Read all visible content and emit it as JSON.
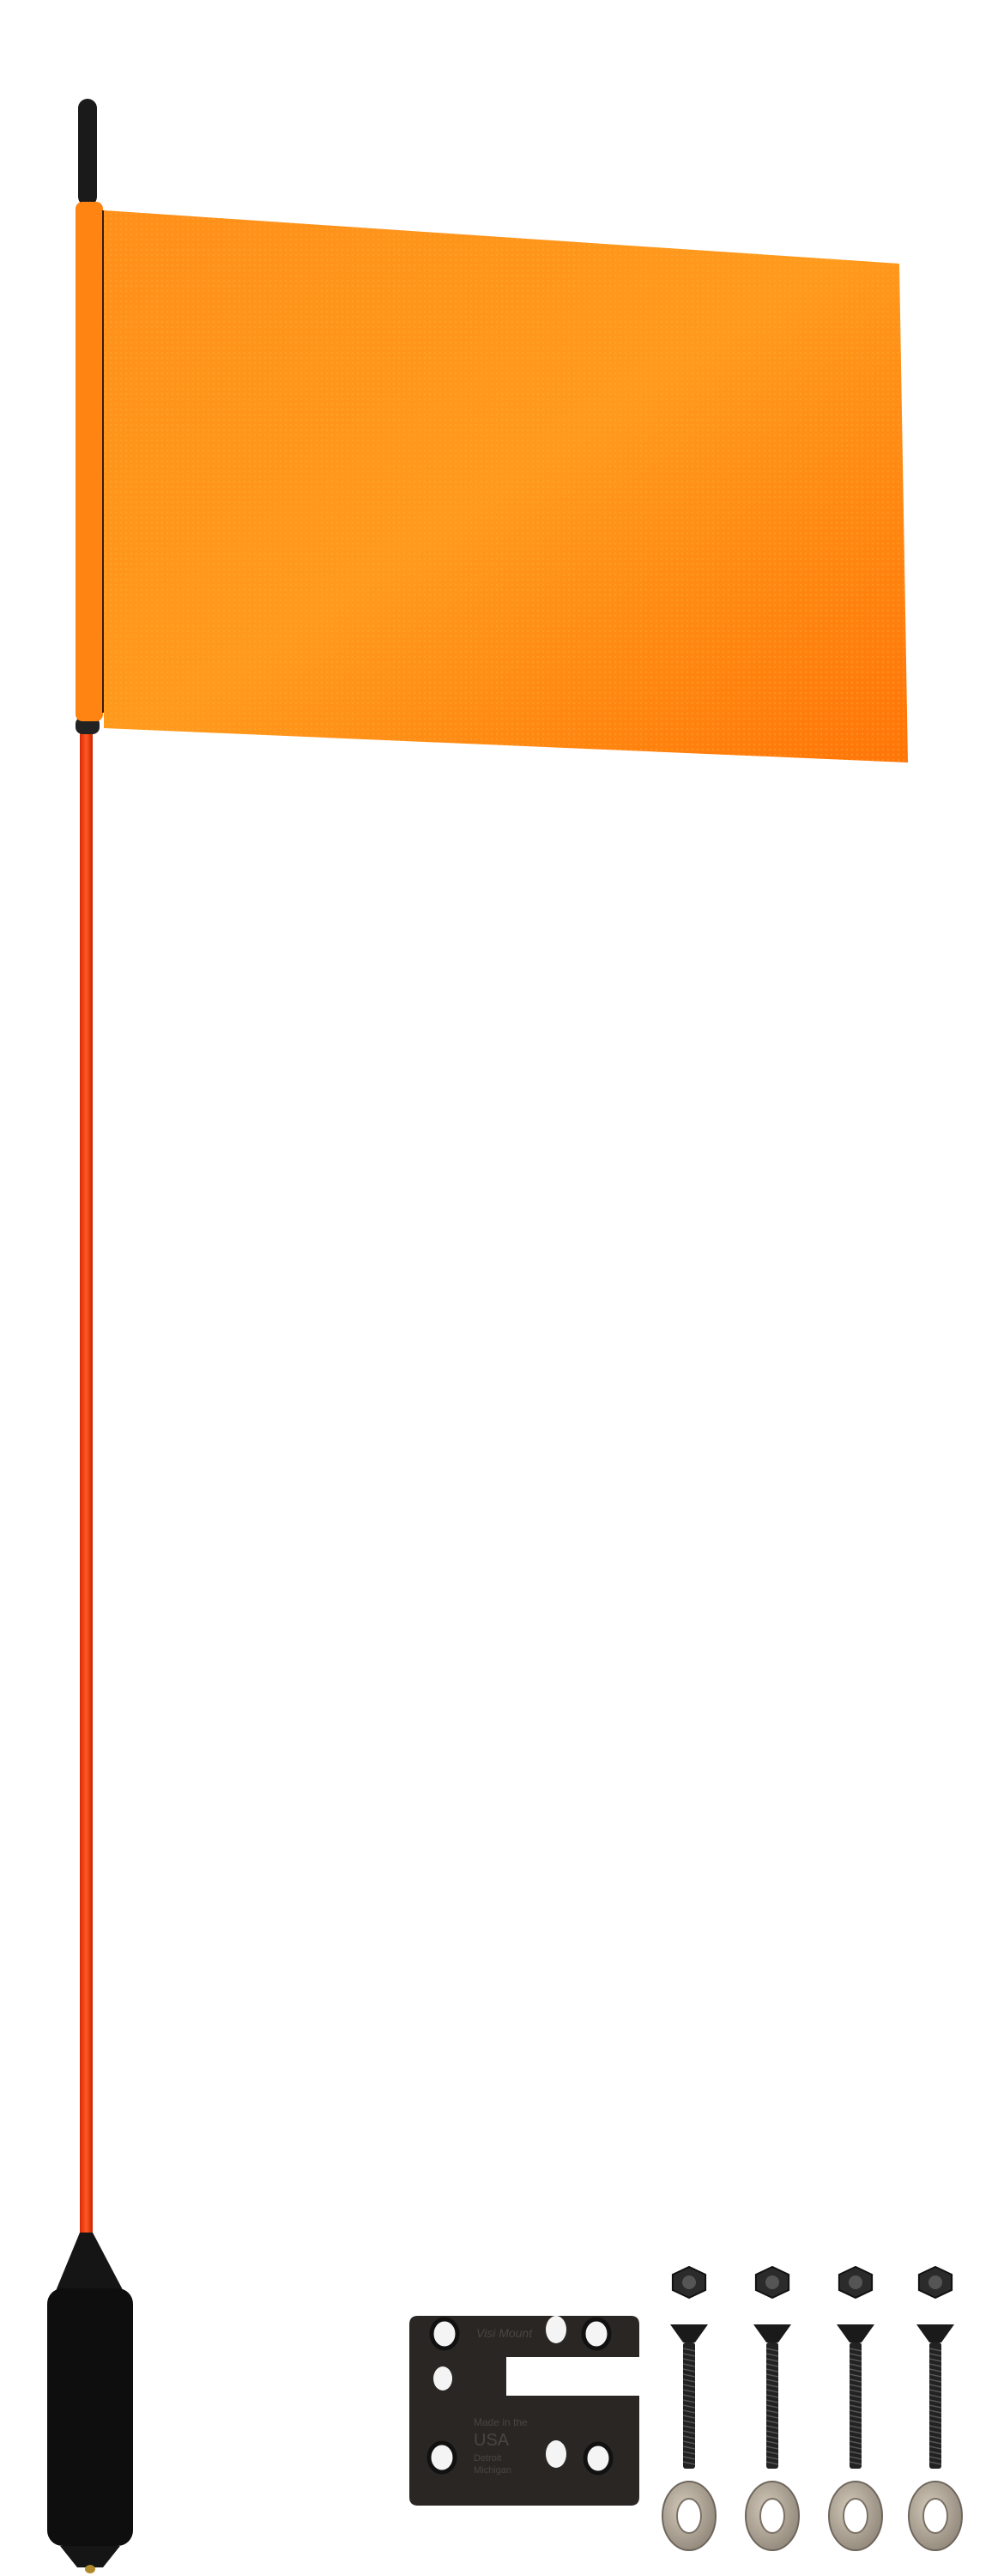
{
  "product_photo": {
    "items": [
      "flag-pole",
      "orange-flag",
      "foam-handle",
      "mounting-plate",
      "lock-nuts",
      "flat-head-bolts",
      "washers"
    ],
    "colors": {
      "flag": "#ff8a10",
      "flag_edge": "#ff6a00",
      "pole": "#ff3d10",
      "handle": "#111111",
      "plate": "#2a2624",
      "washer": "#b9ad9c",
      "background": "#ffffff"
    },
    "hardware_count": 4,
    "plate_text": {
      "logo": "Visi Mount",
      "line1": "Made in the",
      "line2": "USA",
      "line3": "Detroit",
      "line4": "Michigan"
    }
  }
}
